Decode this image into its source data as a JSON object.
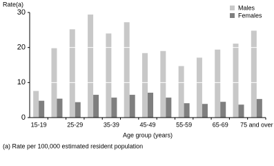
{
  "chart_data": {
    "type": "bar",
    "y_label": "Rate(a)",
    "x_label": "Age group (years)",
    "footnote": "(a) Rate per 100,000 estimated resident population",
    "categories": [
      "15-19",
      null,
      "25-29",
      null,
      "35-39",
      null,
      "45-49",
      null,
      "55-59",
      null,
      "65-69",
      null,
      "75 and over"
    ],
    "series": [
      {
        "name": "Males",
        "color": "#c8c8c8",
        "values": [
          7.6,
          19.8,
          25.2,
          29.4,
          24.0,
          27.2,
          18.4,
          19.0,
          14.7,
          17.1,
          19.4,
          21.1,
          24.8
        ]
      },
      {
        "name": "Females",
        "color": "#7f7f7f",
        "values": [
          4.8,
          5.4,
          4.4,
          6.5,
          5.7,
          6.5,
          7.1,
          5.7,
          4.1,
          3.9,
          4.5,
          3.7,
          5.3
        ]
      }
    ],
    "ylim": [
      0,
      30
    ],
    "yticks": [
      0,
      10,
      20,
      30
    ],
    "grid": true,
    "grid_color": "#ffffff",
    "legend": "top-right"
  }
}
